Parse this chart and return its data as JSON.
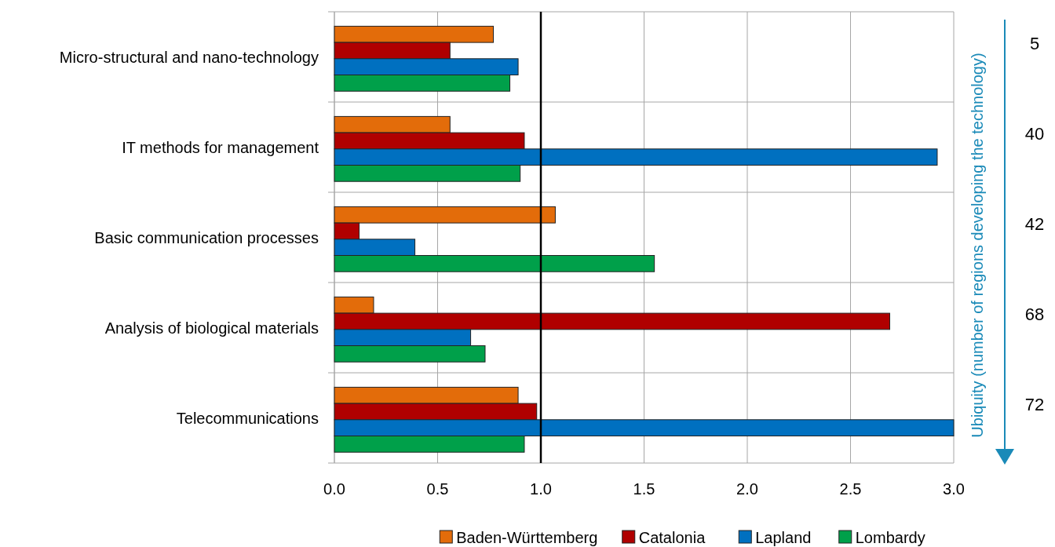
{
  "chart_data": {
    "type": "bar",
    "orientation": "horizontal",
    "categories": [
      "Micro-structural and nano-technology",
      "IT methods for management",
      "Basic communication processes",
      "Analysis of biological materials",
      "Telecommunications"
    ],
    "series": [
      {
        "name": "Baden-Württemberg",
        "color": "#e36c0a",
        "values": [
          0.77,
          0.56,
          1.07,
          0.19,
          0.89
        ]
      },
      {
        "name": "Catalonia",
        "color": "#b00000",
        "values": [
          0.56,
          0.92,
          0.12,
          2.69,
          0.98
        ]
      },
      {
        "name": "Lapland",
        "color": "#0070c0",
        "values": [
          0.89,
          2.92,
          0.39,
          0.66,
          3.0
        ]
      },
      {
        "name": "Lombardy",
        "color": "#00a04a",
        "values": [
          0.85,
          0.9,
          1.55,
          0.73,
          0.92
        ]
      }
    ],
    "xlim": [
      0,
      3
    ],
    "xticks": [
      {
        "value": 0,
        "label": "0.0"
      },
      {
        "value": 0.5,
        "label": "0.5"
      },
      {
        "value": 1,
        "label": "1.0"
      },
      {
        "value": 1.5,
        "label": "1.5"
      },
      {
        "value": 2,
        "label": "2.0"
      },
      {
        "value": 2.5,
        "label": "2.5"
      },
      {
        "value": 3,
        "label": "3.0"
      }
    ],
    "y2label": "Ubiquity (number of regions developing the technology)",
    "annotations": [
      "5",
      "40",
      "42",
      "68",
      "72"
    ],
    "ref_lines": [
      {
        "axis": "x",
        "value": 1,
        "color": "#000000"
      }
    ],
    "grid": true,
    "legend": "bottom"
  }
}
